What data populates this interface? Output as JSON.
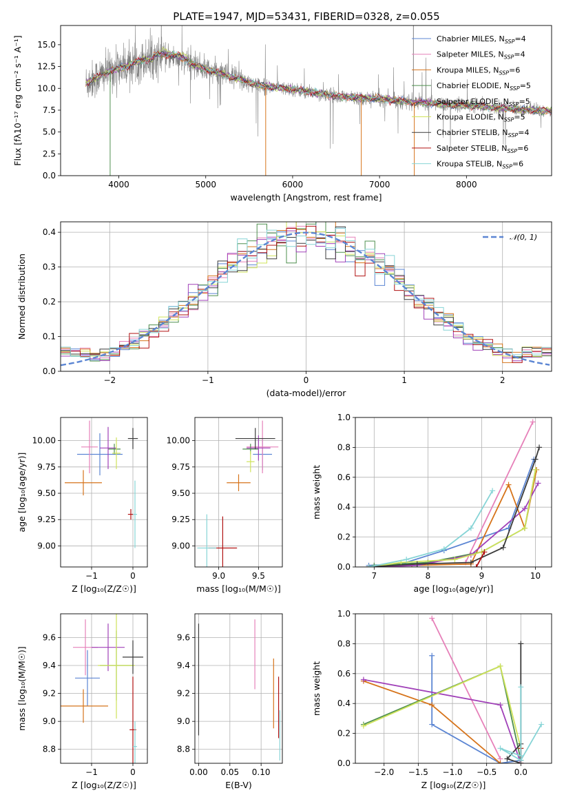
{
  "figure": {
    "title": "PLATE=1947, MJD=53431, FIBERID=0328, z=0.055",
    "model_colors": [
      "#5b85d3",
      "#e680b9",
      "#d6731a",
      "#4e8f4e",
      "#a040b8",
      "#cfe35a",
      "#3a3a3a",
      "#b01010",
      "#86d4d6"
    ],
    "observed_color": "#808080"
  },
  "chart_data": [
    {
      "id": "spectrum",
      "type": "line",
      "xlabel": "wavelength [Angstrom, rest frame]",
      "ylabel": "Flux [fλ10⁻¹⁷ erg cm⁻² s⁻¹ A⁻¹]",
      "xlim": [
        3330,
        8980
      ],
      "ylim": [
        0,
        17.2
      ],
      "xticks": [
        4000,
        5000,
        6000,
        7000,
        8000
      ],
      "yticks": [
        0.0,
        2.5,
        5.0,
        7.5,
        10.0,
        12.5,
        15.0
      ],
      "grid": false,
      "legend": {
        "placement": "top-right",
        "entries": [
          {
            "model": "Chabrier MILES",
            "nssp": "4"
          },
          {
            "model": "Salpeter MILES",
            "nssp": "4"
          },
          {
            "model": "Kroupa MILES",
            "nssp": "6"
          },
          {
            "model": "Chabrier ELODIE",
            "nssp": "5"
          },
          {
            "model": "Salpeter ELODIE",
            "nssp": "5"
          },
          {
            "model": "Kroupa ELODIE",
            "nssp": "5"
          },
          {
            "model": "Chabrier STELIB",
            "nssp": "4"
          },
          {
            "model": "Salpeter STELIB",
            "nssp": "6"
          },
          {
            "model": "Kroupa STELIB",
            "nssp": "6"
          }
        ]
      },
      "continuum": [
        [
          3600,
          10.5
        ],
        [
          3700,
          11.0
        ],
        [
          3800,
          11.5
        ],
        [
          3900,
          12.0
        ],
        [
          4000,
          12.3
        ],
        [
          4100,
          12.6
        ],
        [
          4200,
          13.0
        ],
        [
          4300,
          13.3
        ],
        [
          4400,
          13.5
        ],
        [
          4500,
          13.6
        ],
        [
          4600,
          13.6
        ],
        [
          4700,
          13.3
        ],
        [
          4800,
          12.9
        ],
        [
          4900,
          12.6
        ],
        [
          5000,
          12.2
        ],
        [
          5200,
          11.6
        ],
        [
          5400,
          11.0
        ],
        [
          5600,
          10.4
        ],
        [
          5800,
          10.1
        ],
        [
          6000,
          9.9
        ],
        [
          6200,
          9.6
        ],
        [
          6400,
          9.3
        ],
        [
          6600,
          9.0
        ],
        [
          6800,
          8.9
        ],
        [
          7000,
          8.8
        ],
        [
          7200,
          8.6
        ],
        [
          7400,
          8.4
        ],
        [
          7600,
          8.3
        ],
        [
          7800,
          8.1
        ],
        [
          8000,
          8.0
        ],
        [
          8200,
          7.9
        ],
        [
          8400,
          7.75
        ],
        [
          8600,
          7.6
        ],
        [
          8800,
          7.5
        ],
        [
          8980,
          7.4
        ]
      ],
      "observed_range": [
        3620,
        8990
      ],
      "notable_features": [
        {
          "x": 3900,
          "y": 0.0
        },
        {
          "x": 5690,
          "y": 0.0
        },
        {
          "x": 6790,
          "y": 0.0
        },
        {
          "x": 7400,
          "y": 0.0
        },
        {
          "x": 7390,
          "y": 17.2
        }
      ]
    },
    {
      "id": "residuals",
      "type": "step",
      "xlabel": "(data-model)/error",
      "ylabel": "Normed distribution",
      "xlim": [
        -2.5,
        2.5
      ],
      "ylim": [
        0,
        0.43
      ],
      "xticks": [
        -2,
        -1,
        0,
        1,
        2
      ],
      "yticks": [
        0.0,
        0.1,
        0.2,
        0.3,
        0.4
      ],
      "grid": true,
      "bin_width": 0.1,
      "reference_curve": {
        "label": "𝒩(0, 1)",
        "mean": 0,
        "sigma": 1,
        "color": "#5b85d3",
        "style": "dashed"
      },
      "legend": {
        "placement": "top-right"
      }
    },
    {
      "id": "age-vs-Z",
      "type": "errorbar",
      "xlabel": "Z [log₁₀(Z/Z☉)]",
      "ylabel": "age  [log₁₀(age/yr)]",
      "xlim": [
        -1.75,
        0.35
      ],
      "ylim": [
        8.8,
        10.22
      ],
      "xticks": [
        -1,
        0
      ],
      "yticks": [
        9.0,
        9.25,
        9.5,
        9.75,
        10.0
      ],
      "grid": true,
      "points": [
        {
          "model": 0,
          "x": -0.8,
          "xerr": 0.55,
          "y": 9.87,
          "yerr": 0.2
        },
        {
          "model": 1,
          "x": -1.05,
          "xerr": 0.2,
          "y": 9.94,
          "yerr": 0.25
        },
        {
          "model": 2,
          "x": -1.2,
          "xerr": 0.45,
          "y": 9.6,
          "yerr": 0.12
        },
        {
          "model": 3,
          "x": -0.45,
          "xerr": 0.15,
          "y": 9.92,
          "yerr": 0.05
        },
        {
          "model": 4,
          "x": -0.6,
          "xerr": 0.2,
          "y": 9.93,
          "yerr": 0.2
        },
        {
          "model": 5,
          "x": -0.4,
          "xerr": 0.1,
          "y": 9.88,
          "yerr": 0.15
        },
        {
          "model": 6,
          "x": 0.0,
          "xerr": 0.12,
          "y": 10.02,
          "yerr": 0.1
        },
        {
          "model": 7,
          "x": -0.05,
          "xerr": 0.07,
          "y": 9.3,
          "yerr": 0.05
        },
        {
          "model": 8,
          "x": 0.05,
          "xerr": 0.05,
          "y": 9.3,
          "yerr": 0.32
        }
      ]
    },
    {
      "id": "age-vs-mass",
      "type": "errorbar",
      "xlabel": "mass [log₁₀(M/M☉)]",
      "ylabel": "",
      "xlim": [
        8.7,
        9.8
      ],
      "ylim": [
        8.8,
        10.22
      ],
      "xticks": [
        9.0,
        9.5
      ],
      "yticks": [
        9.0,
        9.25,
        9.5,
        9.75,
        10.0
      ],
      "grid": true,
      "points": [
        {
          "model": 0,
          "x": 9.55,
          "xerr": 0.12,
          "y": 9.87,
          "yerr": 0.15
        },
        {
          "model": 1,
          "x": 9.55,
          "xerr": 0.2,
          "y": 9.94,
          "yerr": 0.25
        },
        {
          "model": 2,
          "x": 9.25,
          "xerr": 0.15,
          "y": 9.6,
          "yerr": 0.08
        },
        {
          "model": 3,
          "x": 9.4,
          "xerr": 0.1,
          "y": 9.92,
          "yerr": 0.05
        },
        {
          "model": 4,
          "x": 9.5,
          "xerr": 0.15,
          "y": 9.93,
          "yerr": 0.12
        },
        {
          "model": 5,
          "x": 9.4,
          "xerr": 0.05,
          "y": 9.8,
          "yerr": 0.1
        },
        {
          "model": 6,
          "x": 9.46,
          "xerr": 0.25,
          "y": 10.02,
          "yerr": 0.1
        },
        {
          "model": 7,
          "x": 9.05,
          "xerr": 0.18,
          "y": 8.98,
          "yerr": 0.3
        },
        {
          "model": 8,
          "x": 8.85,
          "xerr": 0.12,
          "y": 8.98,
          "yerr": 0.32
        }
      ]
    },
    {
      "id": "weight-vs-age",
      "type": "line",
      "xlabel": "age  [log₁₀(age/yr)]",
      "ylabel": "mass weight",
      "xlim": [
        6.65,
        10.3
      ],
      "ylim": [
        0,
        1
      ],
      "xticks": [
        7,
        8,
        9,
        10
      ],
      "yticks": [
        0.0,
        0.2,
        0.4,
        0.6,
        0.8,
        1.0
      ],
      "grid": true,
      "series": [
        {
          "model": 0,
          "x": [
            6.9,
            7.5,
            8.3,
            9.5,
            9.97
          ],
          "y": [
            0.01,
            0.02,
            0.11,
            0.26,
            0.72
          ]
        },
        {
          "model": 1,
          "x": [
            8.7,
            9.95
          ],
          "y": [
            0.03,
            0.97
          ]
        },
        {
          "model": 2,
          "x": [
            6.9,
            7.7,
            8.8,
            9.5,
            9.8,
            10.02
          ],
          "y": [
            0.0,
            0.01,
            0.02,
            0.55,
            0.26,
            0.65
          ]
        },
        {
          "model": 3,
          "x": [
            7.0,
            8.0,
            9.0,
            9.8,
            10.0
          ],
          "y": [
            0.01,
            0.03,
            0.1,
            0.26,
            0.65
          ]
        },
        {
          "model": 4,
          "x": [
            6.9,
            7.8,
            8.8,
            9.8,
            10.05
          ],
          "y": [
            0.0,
            0.01,
            0.08,
            0.39,
            0.56
          ]
        },
        {
          "model": 5,
          "x": [
            6.9,
            7.5,
            8.5,
            9.0,
            9.8,
            10.0
          ],
          "y": [
            0.0,
            0.03,
            0.05,
            0.1,
            0.26,
            0.65
          ]
        },
        {
          "model": 6,
          "x": [
            6.9,
            7.8,
            8.8,
            9.4,
            10.0,
            10.07
          ],
          "y": [
            0.0,
            0.02,
            0.03,
            0.13,
            0.72,
            0.8
          ]
        },
        {
          "model": 7,
          "x": [
            8.9,
            9.05
          ],
          "y": [
            0.0,
            0.1
          ]
        },
        {
          "model": 8,
          "x": [
            6.9,
            7.6,
            8.3,
            8.8,
            9.2
          ],
          "y": [
            0.0,
            0.05,
            0.12,
            0.26,
            0.51
          ]
        }
      ]
    },
    {
      "id": "mass-vs-Z",
      "type": "errorbar",
      "xlabel": "Z [log₁₀(Z/Z☉)]",
      "ylabel": "mass [log₁₀(M/M☉)]",
      "xlim": [
        -1.75,
        0.35
      ],
      "ylim": [
        8.7,
        9.77
      ],
      "xticks": [
        -1,
        0
      ],
      "yticks": [
        8.8,
        9.0,
        9.2,
        9.4,
        9.6
      ],
      "grid": true,
      "points": [
        {
          "model": 0,
          "x": -1.1,
          "xerr": 0.3,
          "y": 9.31,
          "yerr": 0.2
        },
        {
          "model": 1,
          "x": -1.15,
          "xerr": 0.3,
          "y": 9.53,
          "yerr": 0.2
        },
        {
          "model": 2,
          "x": -1.2,
          "xerr": 0.6,
          "y": 9.11,
          "yerr": 0.12
        },
        {
          "model": 3,
          "x": -0.4,
          "xerr": 0.4,
          "y": 9.4,
          "yerr": 0.25
        },
        {
          "model": 4,
          "x": -0.6,
          "xerr": 0.4,
          "y": 9.53,
          "yerr": 0.17
        },
        {
          "model": 5,
          "x": -0.4,
          "xerr": 0.45,
          "y": 9.4,
          "yerr": 0.38
        },
        {
          "model": 6,
          "x": 0.0,
          "xerr": 0.25,
          "y": 9.46,
          "yerr": 0.12
        },
        {
          "model": 7,
          "x": 0.0,
          "xerr": 0.08,
          "y": 8.94,
          "yerr": 0.38
        },
        {
          "model": 8,
          "x": 0.05,
          "xerr": 0.05,
          "y": 8.82,
          "yerr": 0.18
        }
      ]
    },
    {
      "id": "mass-vs-ebv",
      "type": "errorbar",
      "xlabel": "E(B-V)",
      "ylabel": "",
      "xlim": [
        -0.006,
        0.134
      ],
      "ylim": [
        8.7,
        9.77
      ],
      "xticks": [
        0.0,
        0.05,
        0.1
      ],
      "yticks": [
        8.8,
        9.0,
        9.2,
        9.4,
        9.6
      ],
      "grid": true,
      "points": [
        {
          "model": 6,
          "x": 0.0,
          "y": 9.3,
          "yerr": 0.4
        },
        {
          "model": 1,
          "x": 0.09,
          "y": 9.48,
          "yerr": 0.25
        },
        {
          "model": 2,
          "x": 0.12,
          "y": 9.2,
          "yerr": 0.25
        },
        {
          "model": 7,
          "x": 0.128,
          "y": 9.1,
          "yerr": 0.22
        },
        {
          "model": 8,
          "x": 0.13,
          "y": 8.9,
          "yerr": 0.18
        }
      ]
    },
    {
      "id": "weight-vs-Z",
      "type": "line",
      "xlabel": "Z [log₁₀(Z/Z☉)]",
      "ylabel": "mass weight",
      "xlim": [
        -2.42,
        0.45
      ],
      "ylim": [
        0,
        1
      ],
      "xticks": [
        -2.0,
        -1.5,
        -1.0,
        -0.5,
        0.0
      ],
      "yticks": [
        0.0,
        0.2,
        0.4,
        0.6,
        0.8,
        1.0
      ],
      "grid": true,
      "series": [
        {
          "model": 0,
          "x": [
            -1.3,
            -1.3,
            -0.3,
            0.0,
            0.0
          ],
          "y": [
            0.72,
            0.26,
            0.0,
            0.02,
            0.05
          ]
        },
        {
          "model": 1,
          "x": [
            -1.3,
            -0.3
          ],
          "y": [
            0.97,
            0.03
          ]
        },
        {
          "model": 2,
          "x": [
            -2.3,
            -1.3,
            -0.3
          ],
          "y": [
            0.55,
            0.39,
            0.0
          ]
        },
        {
          "model": 3,
          "x": [
            -2.3,
            -0.3,
            0.0
          ],
          "y": [
            0.26,
            0.65,
            0.02
          ]
        },
        {
          "model": 4,
          "x": [
            -2.3,
            -0.3,
            0.0
          ],
          "y": [
            0.56,
            0.39,
            0.0
          ]
        },
        {
          "model": 5,
          "x": [
            -2.3,
            -0.3,
            0.0
          ],
          "y": [
            0.25,
            0.65,
            0.1
          ]
        },
        {
          "model": 6,
          "x": [
            0.0,
            0.0,
            -0.2,
            0.0
          ],
          "y": [
            0.8,
            0.0,
            0.03,
            0.13
          ]
        },
        {
          "model": 7,
          "x": [
            0.0,
            0.0
          ],
          "y": [
            0.0,
            0.1
          ]
        },
        {
          "model": 8,
          "x": [
            0.0,
            0.0,
            -0.3,
            0.0,
            0.3
          ],
          "y": [
            0.51,
            0.05,
            0.1,
            0.02,
            0.26
          ]
        }
      ]
    }
  ]
}
